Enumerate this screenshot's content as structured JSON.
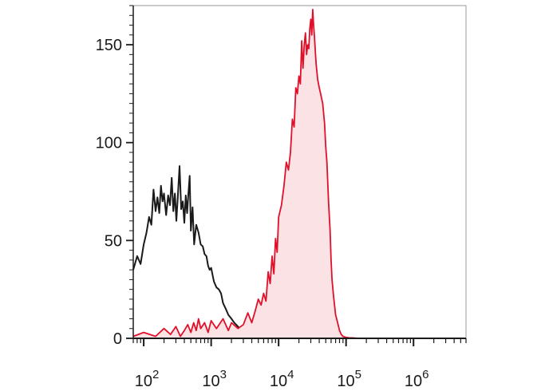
{
  "chart_data": {
    "type": "area",
    "x_scale": "log",
    "xlim": [
      70,
      6000000
    ],
    "ylim": [
      0,
      170
    ],
    "x_ticks": [
      {
        "base": "10",
        "exp": "2",
        "value": 100
      },
      {
        "base": "10",
        "exp": "3",
        "value": 1000
      },
      {
        "base": "10",
        "exp": "4",
        "value": 10000
      },
      {
        "base": "10",
        "exp": "5",
        "value": 100000
      },
      {
        "base": "10",
        "exp": "6",
        "value": 1000000
      }
    ],
    "y_ticks": [
      {
        "label": "0",
        "value": 0
      },
      {
        "label": "50",
        "value": 50
      },
      {
        "label": "100",
        "value": 100
      },
      {
        "label": "150",
        "value": 150
      }
    ],
    "grid": false,
    "series": [
      {
        "style": "line",
        "color": "#1a1a1a",
        "x": [
          70,
          80,
          90,
          100,
          110,
          120,
          130,
          140,
          150,
          160,
          170,
          180,
          190,
          200,
          215,
          230,
          245,
          260,
          275,
          290,
          305,
          320,
          340,
          360,
          380,
          400,
          420,
          440,
          460,
          480,
          500,
          530,
          560,
          600,
          650,
          700,
          750,
          800,
          850,
          900,
          950,
          1000,
          1100,
          1200,
          1300,
          1400,
          1500,
          1650,
          1800,
          2000,
          2200,
          2500,
          2800,
          3200,
          3600,
          4000,
          4500,
          5000,
          6000,
          8000,
          12000,
          50000,
          6000000
        ],
        "y": [
          35,
          42,
          38,
          48,
          54,
          62,
          58,
          76,
          65,
          72,
          64,
          78,
          70,
          74,
          63,
          73,
          68,
          82,
          65,
          74,
          60,
          72,
          88,
          66,
          70,
          59,
          73,
          64,
          74,
          83,
          55,
          67,
          48,
          58,
          54,
          48,
          47,
          43,
          42,
          37,
          35,
          36,
          29,
          26,
          25,
          23,
          18,
          15,
          12,
          10,
          8,
          6,
          4,
          3,
          2,
          1.5,
          1,
          0.5,
          0.5,
          0,
          0,
          0,
          0
        ]
      },
      {
        "style": "filled",
        "color": "#e0102a",
        "fill": "#fbe3e5",
        "x": [
          70,
          100,
          150,
          200,
          250,
          300,
          350,
          400,
          450,
          500,
          550,
          600,
          650,
          700,
          800,
          900,
          1000,
          1200,
          1500,
          1800,
          2000,
          2500,
          3000,
          3500,
          4000,
          4500,
          5000,
          5500,
          6000,
          6500,
          7000,
          7500,
          8000,
          8500,
          9000,
          9500,
          10000,
          11000,
          12000,
          13000,
          14000,
          15000,
          16000,
          17000,
          18000,
          19000,
          20000,
          21000,
          22000,
          23000,
          24000,
          25000,
          26000,
          27000,
          28000,
          29000,
          30000,
          31000,
          32000,
          33000,
          34000,
          35000,
          36000,
          38000,
          40000,
          42000,
          45000,
          48000,
          50000,
          52000,
          55000,
          58000,
          60000,
          62000,
          65000,
          68000,
          70000,
          75000,
          80000,
          85000,
          90000,
          100000,
          110000,
          130000,
          150000,
          200000,
          500000,
          6000000
        ],
        "y": [
          1,
          3,
          1,
          5,
          2,
          6,
          1,
          4,
          7,
          3,
          8,
          4,
          10,
          5,
          8,
          3,
          9,
          5,
          10,
          4,
          8,
          5,
          7,
          13,
          8,
          14,
          20,
          17,
          23,
          19,
          34,
          28,
          42,
          33,
          51,
          44,
          62,
          68,
          78,
          90,
          86,
          95,
          112,
          108,
          128,
          125,
          134,
          130,
          152,
          138,
          150,
          156,
          145,
          150,
          148,
          158,
          163,
          155,
          168,
          160,
          154,
          147,
          140,
          132,
          128,
          125,
          120,
          110,
          98,
          90,
          70,
          55,
          40,
          30,
          22,
          16,
          12,
          8,
          4,
          2,
          1,
          0.5,
          0.3,
          0.2,
          0,
          0,
          0,
          0
        ]
      }
    ]
  }
}
